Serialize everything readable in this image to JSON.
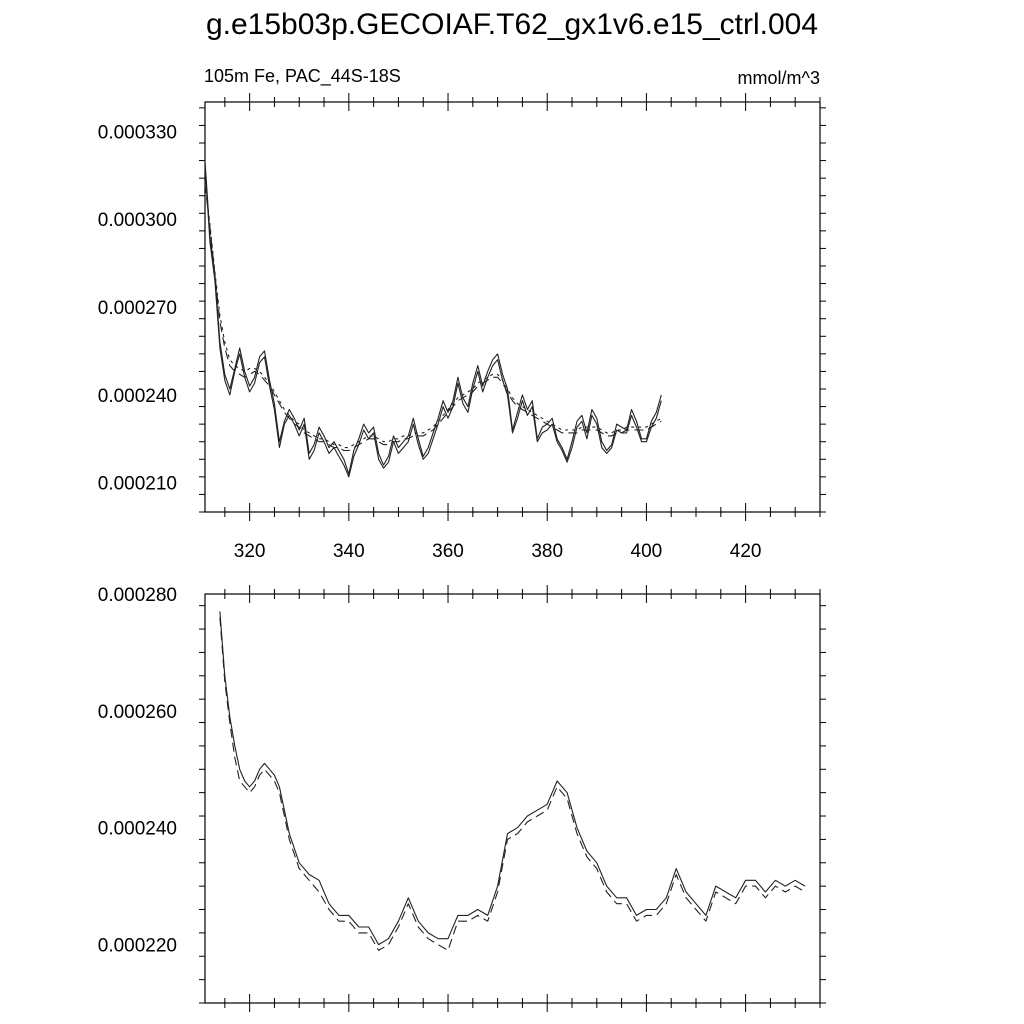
{
  "figure": {
    "title": "g.e15b03p.GECOIAF.T62_gx1v6.e15_ctrl.004",
    "left_label": "105m Fe, PAC_44S-18S",
    "right_label": "mmol/m^3"
  },
  "chart_data": [
    {
      "type": "line",
      "xlim": [
        311,
        435
      ],
      "ylim": [
        0.0002,
        0.00034
      ],
      "x_ticks": [
        320,
        340,
        360,
        380,
        400,
        420
      ],
      "x_tick_labels": [
        "320",
        "340",
        "360",
        "380",
        "400",
        "420"
      ],
      "y_ticks": [
        0.00021,
        0.00024,
        0.00027,
        0.0003,
        0.00033
      ],
      "y_tick_labels": [
        "0.000210",
        "0.000240",
        "0.000270",
        "0.000300",
        "0.000330"
      ],
      "grid": false,
      "x_start": 311,
      "series": [
        {
          "style": "solid",
          "values": [
            0.00032,
            0.000294,
            0.000281,
            0.000258,
            0.000247,
            0.000242,
            0.000249,
            0.000256,
            0.000248,
            0.000243,
            0.000246,
            0.000253,
            0.000255,
            0.000245,
            0.000237,
            0.000224,
            0.000231,
            0.000235,
            0.000232,
            0.000228,
            0.000232,
            0.00022,
            0.000223,
            0.000229,
            0.000226,
            0.000222,
            0.000224,
            0.000221,
            0.000218,
            0.000213,
            0.000221,
            0.000225,
            0.00023,
            0.000227,
            0.000229,
            0.00022,
            0.000216,
            0.000219,
            0.000226,
            0.000222,
            0.000224,
            0.000226,
            0.000232,
            0.000225,
            0.000219,
            0.000222,
            0.000227,
            0.000232,
            0.000238,
            0.000234,
            0.000238,
            0.000246,
            0.000239,
            0.000236,
            0.000244,
            0.00025,
            0.000243,
            0.000248,
            0.000252,
            0.000254,
            0.000247,
            0.000242,
            0.000228,
            0.000234,
            0.00024,
            0.000235,
            0.000238,
            0.000225,
            0.000229,
            0.00023,
            0.000232,
            0.000225,
            0.000222,
            0.000218,
            0.000224,
            0.000231,
            0.000233,
            0.000227,
            0.000235,
            0.000232,
            0.000224,
            0.000221,
            0.000223,
            0.00023,
            0.000229,
            0.000228,
            0.000235,
            0.000231,
            0.000225,
            0.000225,
            0.000231,
            0.000234,
            0.00024
          ]
        },
        {
          "style": "solid",
          "values": [
            0.000318,
            0.000292,
            0.000279,
            0.000256,
            0.000245,
            0.00024,
            0.000248,
            0.000254,
            0.000246,
            0.000241,
            0.000244,
            0.000251,
            0.000253,
            0.000243,
            0.000235,
            0.000222,
            0.00023,
            0.000233,
            0.00023,
            0.000226,
            0.00023,
            0.000218,
            0.000221,
            0.000227,
            0.000224,
            0.00022,
            0.000222,
            0.000219,
            0.000216,
            0.000212,
            0.000219,
            0.000223,
            0.000228,
            0.000225,
            0.000227,
            0.000218,
            0.000215,
            0.000217,
            0.000224,
            0.00022,
            0.000222,
            0.000224,
            0.00023,
            0.000223,
            0.000218,
            0.00022,
            0.000225,
            0.00023,
            0.000236,
            0.000232,
            0.000236,
            0.000244,
            0.000237,
            0.000234,
            0.000242,
            0.000248,
            0.000241,
            0.000246,
            0.00025,
            0.000252,
            0.000245,
            0.00024,
            0.000227,
            0.000232,
            0.000238,
            0.000233,
            0.000236,
            0.000224,
            0.000227,
            0.000228,
            0.00023,
            0.000224,
            0.000221,
            0.000217,
            0.000222,
            0.000229,
            0.000231,
            0.000225,
            0.000233,
            0.00023,
            0.000222,
            0.00022,
            0.000222,
            0.000228,
            0.000227,
            0.000227,
            0.000233,
            0.000229,
            0.000224,
            0.000224,
            0.000229,
            0.000232,
            0.000238
          ]
        },
        {
          "style": "dashed",
          "values": [
            0.000312,
            0.000297,
            0.000281,
            0.000265,
            0.000256,
            0.00025,
            0.000248,
            0.000247,
            0.000246,
            0.000247,
            0.000248,
            0.000247,
            0.000245,
            0.000243,
            0.00024,
            0.000237,
            0.000234,
            0.000232,
            0.00023,
            0.000229,
            0.000227,
            0.000226,
            0.000225,
            0.000224,
            0.000224,
            0.000223,
            0.000222,
            0.000222,
            0.000221,
            0.000221,
            0.000222,
            0.000223,
            0.000224,
            0.000225,
            0.000225,
            0.000224,
            0.000223,
            0.000223,
            0.000224,
            0.000224,
            0.000225,
            0.000225,
            0.000226,
            0.000226,
            0.000226,
            0.000227,
            0.000228,
            0.00023,
            0.000232,
            0.000234,
            0.000236,
            0.000238,
            0.000239,
            0.00024,
            0.000241,
            0.000243,
            0.000244,
            0.000245,
            0.000246,
            0.000246,
            0.000244,
            0.000241,
            0.000238,
            0.000236,
            0.000235,
            0.000234,
            0.000233,
            0.000232,
            0.000231,
            0.00023,
            0.000229,
            0.000228,
            0.000227,
            0.000227,
            0.000227,
            0.000227,
            0.000228,
            0.000228,
            0.000228,
            0.000228,
            0.000227,
            0.000226,
            0.000226,
            0.000227,
            0.000227,
            0.000228,
            0.000228,
            0.000228,
            0.000228,
            0.000228,
            0.000229,
            0.00023,
            0.000231
          ]
        },
        {
          "style": "dotted",
          "values": [
            0.000313,
            0.000298,
            0.000282,
            0.000267,
            0.000258,
            0.000252,
            0.00025,
            0.000249,
            0.000248,
            0.000249,
            0.000249,
            0.000248,
            0.000246,
            0.000244,
            0.000241,
            0.000238,
            0.000235,
            0.000233,
            0.000231,
            0.00023,
            0.000228,
            0.000227,
            0.000226,
            0.000225,
            0.000225,
            0.000224,
            0.000223,
            0.000223,
            0.000222,
            0.000222,
            0.000223,
            0.000224,
            0.000225,
            0.000226,
            0.000226,
            0.000225,
            0.000224,
            0.000224,
            0.000225,
            0.000225,
            0.000226,
            0.000226,
            0.000227,
            0.000227,
            0.000227,
            0.000228,
            0.000229,
            0.000231,
            0.000233,
            0.000235,
            0.000237,
            0.000239,
            0.00024,
            0.000241,
            0.000242,
            0.000244,
            0.000245,
            0.000246,
            0.000247,
            0.000247,
            0.000245,
            0.000242,
            0.000239,
            0.000237,
            0.000236,
            0.000235,
            0.000234,
            0.000233,
            0.000232,
            0.000231,
            0.00023,
            0.000229,
            0.000228,
            0.000228,
            0.000228,
            0.000228,
            0.000229,
            0.000229,
            0.000229,
            0.000229,
            0.000228,
            0.000227,
            0.000227,
            0.000228,
            0.000228,
            0.000229,
            0.000229,
            0.000229,
            0.000229,
            0.000229,
            0.00023,
            0.000231,
            0.000232
          ]
        }
      ]
    },
    {
      "type": "line",
      "xlim": [
        311,
        435
      ],
      "ylim": [
        0.00021,
        0.00028
      ],
      "x_ticks": [
        320,
        340,
        360,
        380,
        400,
        420
      ],
      "y_ticks": [
        0.00022,
        0.00024,
        0.00026,
        0.00028
      ],
      "y_tick_labels": [
        "0.000220",
        "0.000240",
        "0.000260",
        "0.000280"
      ],
      "grid": false,
      "series": [
        {
          "style": "solid",
          "x": [
            314,
            315,
            316,
            317,
            318,
            319,
            320,
            321,
            322,
            323,
            324,
            325,
            326,
            327,
            328,
            330,
            332,
            334,
            336,
            338,
            340,
            342,
            344,
            346,
            348,
            350,
            352,
            354,
            356,
            358,
            360,
            362,
            364,
            366,
            368,
            370,
            372,
            374,
            376,
            378,
            380,
            382,
            384,
            386,
            388,
            390,
            392,
            394,
            396,
            398,
            400,
            402,
            404,
            406,
            408,
            410,
            412,
            414,
            416,
            418,
            420,
            422,
            424,
            426,
            428,
            430,
            432
          ],
          "values": [
            0.000277,
            0.000266,
            0.000259,
            0.000254,
            0.00025,
            0.000248,
            0.000247,
            0.000248,
            0.00025,
            0.000251,
            0.00025,
            0.000249,
            0.000247,
            0.000243,
            0.000239,
            0.000234,
            0.000232,
            0.000231,
            0.000227,
            0.000225,
            0.000225,
            0.000223,
            0.000223,
            0.00022,
            0.000221,
            0.000224,
            0.000228,
            0.000224,
            0.000222,
            0.000221,
            0.000221,
            0.000225,
            0.000225,
            0.000226,
            0.000225,
            0.00023,
            0.000239,
            0.00024,
            0.000242,
            0.000243,
            0.000244,
            0.000248,
            0.000246,
            0.00024,
            0.000236,
            0.000234,
            0.00023,
            0.000228,
            0.000228,
            0.000225,
            0.000226,
            0.000226,
            0.000228,
            0.000233,
            0.000229,
            0.000227,
            0.000225,
            0.00023,
            0.000229,
            0.000228,
            0.000231,
            0.000231,
            0.000229,
            0.000231,
            0.00023,
            0.000231,
            0.00023
          ]
        },
        {
          "style": "dashed",
          "x": [
            314,
            315,
            316,
            317,
            318,
            319,
            320,
            321,
            322,
            323,
            324,
            325,
            326,
            327,
            328,
            330,
            332,
            334,
            336,
            338,
            340,
            342,
            344,
            346,
            348,
            350,
            352,
            354,
            356,
            358,
            360,
            362,
            364,
            366,
            368,
            370,
            372,
            374,
            376,
            378,
            380,
            382,
            384,
            386,
            388,
            390,
            392,
            394,
            396,
            398,
            400,
            402,
            404,
            406,
            408,
            410,
            412,
            414,
            416,
            418,
            420,
            422,
            424,
            426,
            428,
            430,
            432
          ],
          "values": [
            0.000276,
            0.000265,
            0.000258,
            0.000252,
            0.000248,
            0.000247,
            0.000246,
            0.000247,
            0.000249,
            0.00025,
            0.000249,
            0.000248,
            0.000246,
            0.000242,
            0.000238,
            0.000233,
            0.000231,
            0.000229,
            0.000226,
            0.000224,
            0.000224,
            0.000222,
            0.000222,
            0.000219,
            0.00022,
            0.000223,
            0.000227,
            0.000223,
            0.000221,
            0.00022,
            0.000219,
            0.000224,
            0.000224,
            0.000225,
            0.000224,
            0.000229,
            0.000238,
            0.000239,
            0.000241,
            0.000242,
            0.000243,
            0.000247,
            0.000245,
            0.000239,
            0.000235,
            0.000233,
            0.000229,
            0.000227,
            0.000227,
            0.000224,
            0.000225,
            0.000225,
            0.000227,
            0.000232,
            0.000228,
            0.000226,
            0.000224,
            0.000229,
            0.000228,
            0.000227,
            0.00023,
            0.00023,
            0.000228,
            0.00023,
            0.000229,
            0.00023,
            0.000229
          ]
        }
      ]
    }
  ]
}
